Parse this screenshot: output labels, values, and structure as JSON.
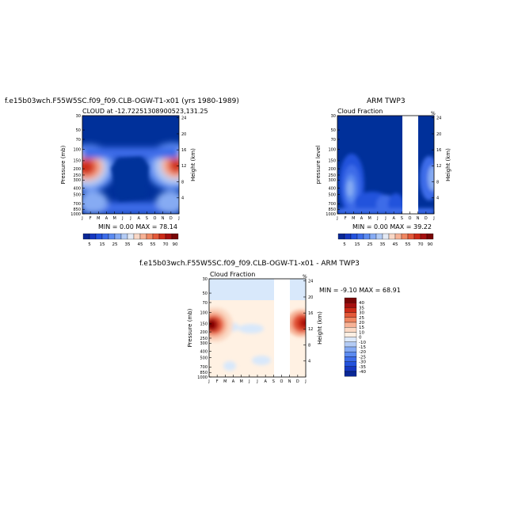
{
  "chart_data": [
    {
      "type": "heatmap",
      "title": "f.e15b03wch.F55W5SC.f09_f09.CLB-OGW-T1-x01 (yrs 1980-1989)",
      "subtitle": "CLOUD at -12.72251308900523,131.25",
      "ylabel": "Pressure (mb)",
      "ylabel_right": "Height (km)",
      "x_ticks": [
        "J",
        "F",
        "M",
        "A",
        "M",
        "J",
        "J",
        "A",
        "S",
        "O",
        "N",
        "D",
        "J"
      ],
      "y_ticks": [
        "30",
        "50",
        "70",
        "100",
        "150",
        "200",
        "250",
        "300",
        "400",
        "500",
        "700",
        "850",
        "1000"
      ],
      "y_right_ticks": [
        "24",
        "20",
        "16",
        "12",
        "8",
        "4"
      ],
      "stats": "MIN =    0.00 MAX =   78.14",
      "colorbar_labels": [
        "5",
        "15",
        "25",
        "35",
        "45",
        "55",
        "70",
        "90"
      ],
      "levels": [
        5,
        10,
        15,
        20,
        25,
        30,
        35,
        40,
        45,
        50,
        55,
        60,
        70,
        80,
        90
      ],
      "peak": 78.14
    },
    {
      "type": "heatmap",
      "title": "ARM TWP3",
      "subtitle": "Cloud Fraction",
      "corner_label": "%",
      "ylabel": "pressure level",
      "ylabel_right": "Height (km)",
      "x_ticks": [
        "J",
        "F",
        "M",
        "A",
        "M",
        "J",
        "J",
        "A",
        "S",
        "O",
        "N",
        "D",
        "J"
      ],
      "y_ticks": [
        "30",
        "50",
        "70",
        "100",
        "150",
        "200",
        "250",
        "300",
        "400",
        "500",
        "700",
        "850",
        "1000"
      ],
      "y_right_ticks": [
        "24",
        "20",
        "16",
        "12",
        "8",
        "4"
      ],
      "stats": "MIN =    0.00 MAX =   39.22",
      "colorbar_labels": [
        "5",
        "15",
        "25",
        "35",
        "45",
        "55",
        "70",
        "90"
      ],
      "missing_months": [
        "S",
        "O"
      ],
      "peak": 39.22
    },
    {
      "type": "heatmap",
      "title": "f.e15b03wch.F55W5SC.f09_f09.CLB-OGW-T1-x01 - ARM TWP3",
      "subtitle": "Cloud Fraction",
      "corner_label": "%",
      "ylabel": "Pressure (mb)",
      "ylabel_right": "Height (km)",
      "x_ticks": [
        "J",
        "F",
        "M",
        "A",
        "M",
        "J",
        "J",
        "A",
        "S",
        "O",
        "N",
        "D",
        "J"
      ],
      "y_ticks": [
        "30",
        "50",
        "70",
        "100",
        "150",
        "200",
        "250",
        "300",
        "400",
        "500",
        "700",
        "850",
        "1000"
      ],
      "y_right_ticks": [
        "24",
        "20",
        "16",
        "12",
        "8",
        "4"
      ],
      "stats": "MIN =   -9.10 MAX =   68.91",
      "colorbar_labels": [
        "40",
        "35",
        "30",
        "25",
        "20",
        "15",
        "10",
        "0",
        "-10",
        "-15",
        "-20",
        "-25",
        "-30",
        "-35",
        "-40"
      ],
      "missing_months": [
        "S",
        "O"
      ]
    }
  ],
  "colors": {
    "seq_palette": [
      "#0a2896",
      "#1638c0",
      "#2452dc",
      "#3d6ce8",
      "#5c8bf0",
      "#86abf3",
      "#b3cbf4",
      "#e3e9f4",
      "#f8d7c6",
      "#f7b296",
      "#ef8762",
      "#e3593a",
      "#cc2b18",
      "#a51010",
      "#780606"
    ],
    "div_palette": [
      "#780606",
      "#a51010",
      "#cc2b18",
      "#e3593a",
      "#ef8762",
      "#f7b296",
      "#fbd9c4",
      "#fdf0e4",
      "#dce9fb",
      "#b3cbf4",
      "#86abf3",
      "#5c8bf0",
      "#3d6ce8",
      "#2452dc",
      "#1638c0",
      "#0a2896"
    ],
    "background_low": "#00309a",
    "diff_background": "#fff1e3",
    "diff_top_band": "#d8e8fb"
  }
}
